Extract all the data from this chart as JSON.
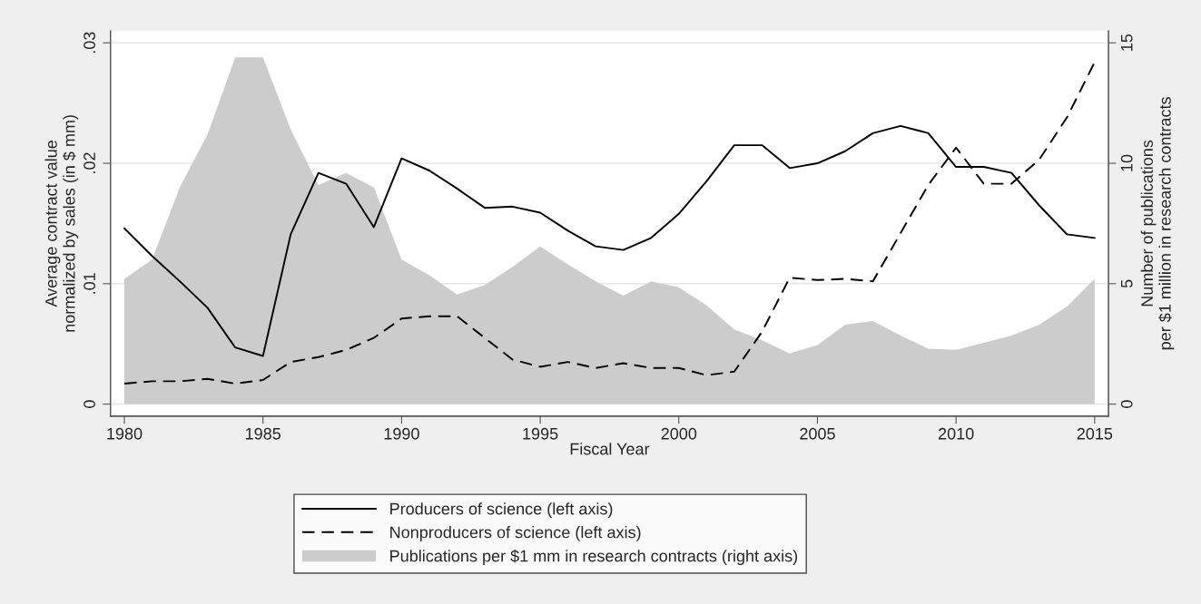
{
  "chart_data": {
    "type": "line",
    "xlabel": "Fiscal Year",
    "ylabel": "Average contract value\nnormalized by sales (in $ mm)",
    "y2label": "Number of publications\nper $1 million in research contracts",
    "x": [
      1980,
      1981,
      1982,
      1983,
      1984,
      1985,
      1986,
      1987,
      1988,
      1989,
      1990,
      1991,
      1992,
      1993,
      1994,
      1995,
      1996,
      1997,
      1998,
      1999,
      2000,
      2001,
      2002,
      2003,
      2004,
      2005,
      2006,
      2007,
      2008,
      2009,
      2010,
      2011,
      2012,
      2013,
      2014,
      2015
    ],
    "series": [
      {
        "name": "Producers of science (left axis)",
        "line_style": "solid",
        "color": "#000000",
        "values": [
          0.0146,
          0.0123,
          0.0102,
          0.008,
          0.0047,
          0.004,
          0.0141,
          0.0192,
          0.0183,
          0.0147,
          0.0204,
          0.0194,
          0.0179,
          0.0163,
          0.0164,
          0.0159,
          0.0144,
          0.0131,
          0.0128,
          0.0138,
          0.0158,
          0.0185,
          0.0215,
          0.0215,
          0.0196,
          0.02,
          0.021,
          0.0225,
          0.0231,
          0.0225,
          0.0197,
          0.0197,
          0.0192,
          0.0165,
          0.0141,
          0.0138
        ]
      },
      {
        "name": "Nonproducers of science (left axis)",
        "line_style": "dashed",
        "color": "#000000",
        "values": [
          0.0017,
          0.0019,
          0.0019,
          0.0021,
          0.0017,
          0.002,
          0.0035,
          0.0039,
          0.0045,
          0.0055,
          0.0071,
          0.0073,
          0.0073,
          0.0055,
          0.0037,
          0.0031,
          0.0035,
          0.003,
          0.0034,
          0.003,
          0.003,
          0.0024,
          0.0027,
          0.006,
          0.0105,
          0.0103,
          0.0104,
          0.0102,
          0.0142,
          0.0182,
          0.0213,
          0.0183,
          0.0183,
          0.0203,
          0.0238,
          0.0284
        ]
      },
      {
        "name": "Publications per $1 mm in research contracts (right axis)",
        "type": "area",
        "axis": "y2",
        "color": "#cccccc",
        "values": [
          5.2,
          6.0,
          9.0,
          11.2,
          14.4,
          14.4,
          11.4,
          9.1,
          9.6,
          9.0,
          6.0,
          5.35,
          4.55,
          4.95,
          5.7,
          6.55,
          5.8,
          5.1,
          4.5,
          5.1,
          4.85,
          4.1,
          3.1,
          2.65,
          2.1,
          2.45,
          3.3,
          3.45,
          2.85,
          2.3,
          2.25,
          2.55,
          2.85,
          3.3,
          4.05,
          5.2
        ]
      }
    ],
    "xlim": [
      1979.5,
      2015.5
    ],
    "xticks": [
      1980,
      1985,
      1990,
      1995,
      2000,
      2005,
      2010,
      2015
    ],
    "ylim": [
      -0.001,
      0.031
    ],
    "yticks": [
      {
        "value": 0,
        "label": "0"
      },
      {
        "value": 0.01,
        "label": ".01"
      },
      {
        "value": 0.02,
        "label": ".02"
      },
      {
        "value": 0.03,
        "label": ".03"
      }
    ],
    "y2lim": [
      -0.5,
      15.5
    ],
    "y2ticks": [
      0,
      5,
      10,
      15
    ],
    "grid": "y",
    "legend": "bottom"
  }
}
